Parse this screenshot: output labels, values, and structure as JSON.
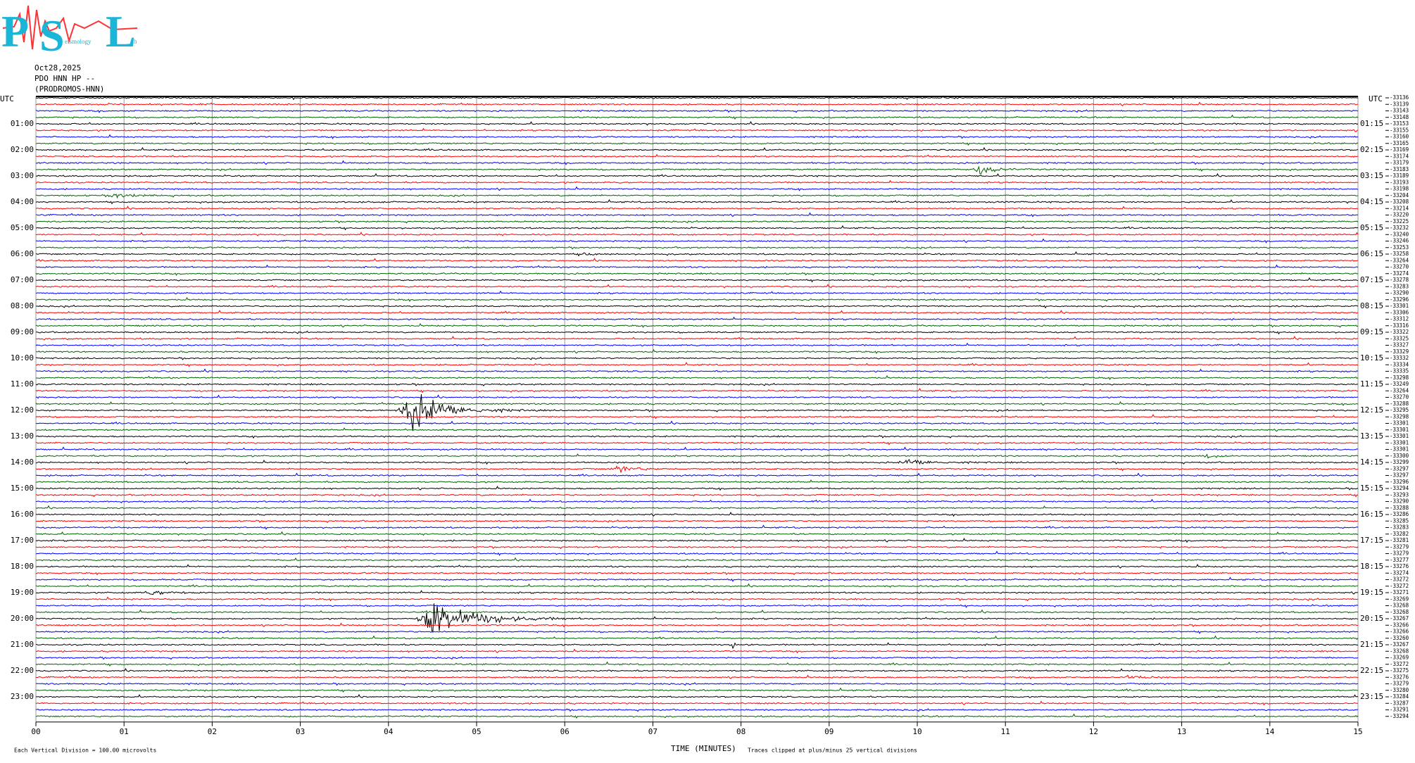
{
  "logo": {
    "letters": [
      "P",
      "S",
      "L"
    ],
    "small": [
      "eismology",
      "ab"
    ]
  },
  "info": [
    "Oct28,2025",
    "PDO HNN HP --",
    "(PRODROMOS-HNN)"
  ],
  "left_header": "UTC",
  "right_header": "UTC",
  "left_times": [
    "01:00",
    "02:00",
    "03:00",
    "04:00",
    "05:00",
    "06:00",
    "07:00",
    "08:00",
    "09:00",
    "10:00",
    "11:00",
    "12:00",
    "13:00",
    "14:00",
    "15:00",
    "16:00",
    "17:00",
    "18:00",
    "19:00",
    "20:00",
    "21:00",
    "22:00",
    "23:00"
  ],
  "right_times": [
    "01:15",
    "02:15",
    "03:15",
    "04:15",
    "05:15",
    "06:15",
    "07:15",
    "08:15",
    "09:15",
    "10:15",
    "11:15",
    "12:15",
    "13:15",
    "14:15",
    "15:15",
    "16:15",
    "17:15",
    "18:15",
    "19:15",
    "20:15",
    "21:15",
    "22:15",
    "23:15"
  ],
  "x_ticks": [
    "00",
    "01",
    "02",
    "03",
    "04",
    "05",
    "06",
    "07",
    "08",
    "09",
    "10",
    "11",
    "12",
    "13",
    "14",
    "15"
  ],
  "x_axis_title": "TIME (MINUTES)",
  "footer_left": "Each Vertical Division =  100.00 microvolts",
  "footer_right": "Traces clipped at plus/minus 25 vertical divisions",
  "trace_colors": [
    "#000000",
    "#ff0000",
    "#0000ff",
    "#006400"
  ],
  "trace_offsets": [
    -33136,
    -33139,
    -33143,
    -33148,
    -33153,
    -33155,
    -33160,
    -33165,
    -33169,
    -33174,
    -33179,
    -33183,
    -33189,
    -33193,
    -33198,
    -33204,
    -33208,
    -33214,
    -33220,
    -33225,
    -33232,
    -33240,
    -33246,
    -33253,
    -33258,
    -33264,
    -33270,
    -33274,
    -33278,
    -33283,
    -33290,
    -33296,
    -33301,
    -33306,
    -33312,
    -33316,
    -33322,
    -33325,
    -33327,
    -33329,
    -33332,
    -33334,
    -33335,
    -33298,
    -33249,
    -33264,
    -33270,
    -33288,
    -33295,
    -33298,
    -33301,
    -33301,
    -33301,
    -33301,
    -33301,
    -33300,
    -33299,
    -33297,
    -33297,
    -33296,
    -33294,
    -33293,
    -33290,
    -33288,
    -33286,
    -33285,
    -33283,
    -33282,
    -33281,
    -33279,
    -33279,
    -33277,
    -33276,
    -33274,
    -33272,
    -33272,
    -33271,
    -33269,
    -33268,
    -33268,
    -33267,
    -33266,
    -33266,
    -33260,
    -33267,
    -33268,
    -33269,
    -33272,
    -33275,
    -33276,
    -33279,
    -33280,
    -33284,
    -33287,
    -33291,
    -33294
  ]
}
